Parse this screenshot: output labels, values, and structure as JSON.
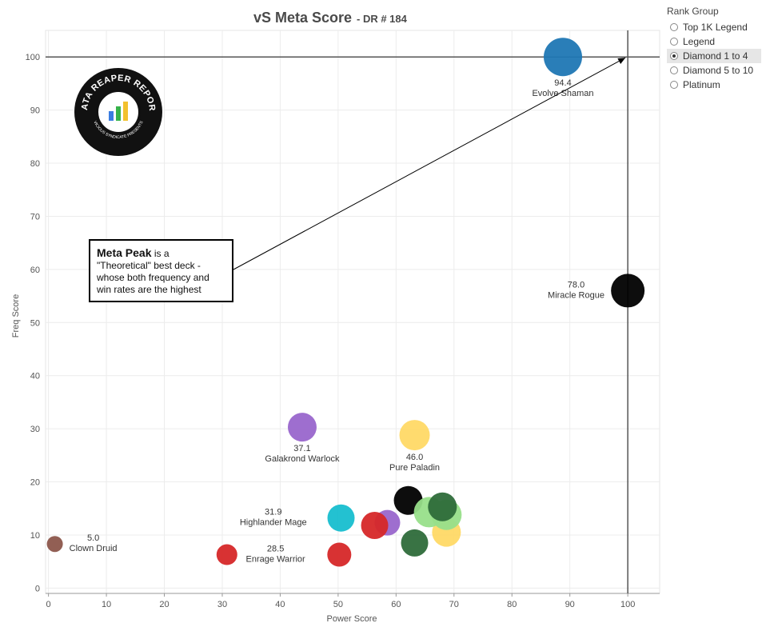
{
  "chart_data": {
    "type": "scatter",
    "title": "vS Meta Score",
    "subtitle": "- DR # 184",
    "xlabel": "Power Score",
    "ylabel": "Freq Score",
    "xlim": [
      -0.5,
      105.5
    ],
    "ylim": [
      -1,
      105
    ],
    "x_ticks": [
      0,
      10,
      20,
      30,
      40,
      50,
      60,
      70,
      80,
      90,
      100
    ],
    "y_ticks": [
      0,
      10,
      20,
      30,
      40,
      50,
      60,
      70,
      80,
      90,
      100
    ],
    "grid": true,
    "reference_lines": {
      "x": 100,
      "y": 100
    },
    "points": [
      {
        "x": 88.8,
        "y": 100,
        "r": 24,
        "color": "#1f77b4",
        "value": "94.4",
        "name": "Evolve Shaman"
      },
      {
        "x": 100,
        "y": 56,
        "r": 21,
        "color": "#000000",
        "value": "78.0",
        "name": "Miracle Rogue"
      },
      {
        "x": 63.2,
        "y": 28.8,
        "r": 19,
        "color": "#ffd966",
        "value": "46.0",
        "name": "Pure Paladin"
      },
      {
        "x": 43.8,
        "y": 30.3,
        "r": 18,
        "color": "#9966cc",
        "value": "37.1",
        "name": "Galakrond Warlock"
      },
      {
        "x": 50.5,
        "y": 13.2,
        "r": 17,
        "color": "#17becf",
        "value": "31.9",
        "name": "Highlander Mage"
      },
      {
        "x": 50.2,
        "y": 6.3,
        "r": 15,
        "color": "#d62728",
        "value": "28.5",
        "name": "Enrage Warrior"
      },
      {
        "x": 1.1,
        "y": 8.3,
        "r": 10,
        "color": "#8c564b",
        "value": "5.0",
        "name": "Clown Druid"
      },
      {
        "x": 30.8,
        "y": 6.3,
        "r": 13,
        "color": "#d62728",
        "value": "",
        "name": ""
      },
      {
        "x": 58.5,
        "y": 12.3,
        "r": 16,
        "color": "#9966cc",
        "value": "",
        "name": ""
      },
      {
        "x": 56.3,
        "y": 11.8,
        "r": 17,
        "color": "#d62728",
        "value": "",
        "name": ""
      },
      {
        "x": 62.1,
        "y": 16.5,
        "r": 18,
        "color": "#000000",
        "value": "",
        "name": ""
      },
      {
        "x": 63.2,
        "y": 8.5,
        "r": 17,
        "color": "#2e6b3a",
        "value": "",
        "name": ""
      },
      {
        "x": 68.7,
        "y": 10.5,
        "r": 18,
        "color": "#ffd966",
        "value": "",
        "name": ""
      },
      {
        "x": 65.7,
        "y": 14.3,
        "r": 19,
        "color": "#98df8a",
        "value": "",
        "name": ""
      },
      {
        "x": 68.7,
        "y": 13.8,
        "r": 19,
        "color": "#98df8a",
        "value": "",
        "name": ""
      },
      {
        "x": 68.0,
        "y": 15.3,
        "r": 18,
        "color": "#2e6b3a",
        "value": "",
        "name": ""
      }
    ]
  },
  "annotation": {
    "bold": "Meta Peak",
    "rest": " is a \"Theoretical\" best deck - whose both frequency and win rates are the highest",
    "arrow_to": {
      "x": 100,
      "y": 100
    }
  },
  "logo": {
    "text": "DATA REAPER REPORT",
    "subtext": "VICIOUS SYNDICATE PRESENTS"
  },
  "legend": {
    "title": "Rank Group",
    "items": [
      {
        "label": "Top 1K Legend",
        "selected": false
      },
      {
        "label": "Legend",
        "selected": false
      },
      {
        "label": "Diamond 1 to 4",
        "selected": true
      },
      {
        "label": "Diamond 5 to 10",
        "selected": false
      },
      {
        "label": "Platinum",
        "selected": false
      }
    ]
  }
}
